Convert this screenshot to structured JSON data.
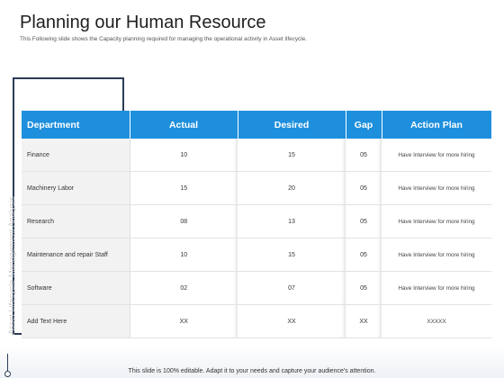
{
  "slide": {
    "title": "Planning our Human Resource",
    "subtitle": "This Following slide shows the Capacity planning required for managing the operational activity in Asset lifecycle.",
    "side_label": "Asset Lifecycle Management Analysis",
    "footer_note": "This slide is 100% editable. Adapt it to your needs and capture your audience's attention."
  },
  "table": {
    "headers": [
      "Department",
      "Actual",
      "Desired",
      "Gap",
      "Action Plan"
    ],
    "rows": [
      {
        "department": "Finance",
        "actual": "10",
        "desired": "15",
        "gap": "05",
        "plan": "Have Interview for more hiring"
      },
      {
        "department": "Machinery Labor",
        "actual": "15",
        "desired": "20",
        "gap": "05",
        "plan": "Have Interview for more hiring"
      },
      {
        "department": "Research",
        "actual": "08",
        "desired": "13",
        "gap": "05",
        "plan": "Have Interview for more hiring"
      },
      {
        "department": "Maintenance and repair Staff",
        "actual": "10",
        "desired": "15",
        "gap": "05",
        "plan": "Have Interview for more hiring"
      },
      {
        "department": "Software",
        "actual": "02",
        "desired": "07",
        "gap": "05",
        "plan": "Have Interview for more hiring"
      },
      {
        "department": "Add Text Here",
        "actual": "XX",
        "desired": "XX",
        "gap": "XX",
        "plan": "XXXXX"
      }
    ]
  },
  "colors": {
    "header_blue": "#1e8fdd",
    "frame_navy": "#2a3b57"
  }
}
